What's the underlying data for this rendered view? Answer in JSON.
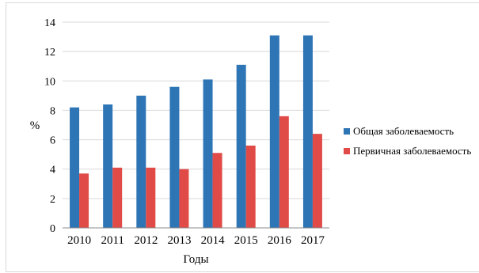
{
  "chart_data": {
    "type": "bar",
    "categories": [
      "2010",
      "2011",
      "2012",
      "2013",
      "2014",
      "2015",
      "2016",
      "2017"
    ],
    "series": [
      {
        "name": "Общая заболеваемость",
        "color": "#2e75b6",
        "values": [
          8.2,
          8.4,
          9.0,
          9.6,
          10.1,
          11.1,
          13.1,
          13.1
        ]
      },
      {
        "name": "Первичная заболеваемость",
        "color": "#e04b48",
        "values": [
          3.7,
          4.1,
          4.1,
          4.0,
          5.1,
          5.6,
          7.6,
          6.4
        ]
      }
    ],
    "title": "",
    "xlabel": "Годы",
    "ylabel": "%",
    "ylim": [
      0,
      14
    ],
    "yticks": [
      "0",
      "2",
      "4",
      "6",
      "8",
      "10",
      "12",
      "14"
    ],
    "grid": "horizontal",
    "legend_position": "right"
  }
}
